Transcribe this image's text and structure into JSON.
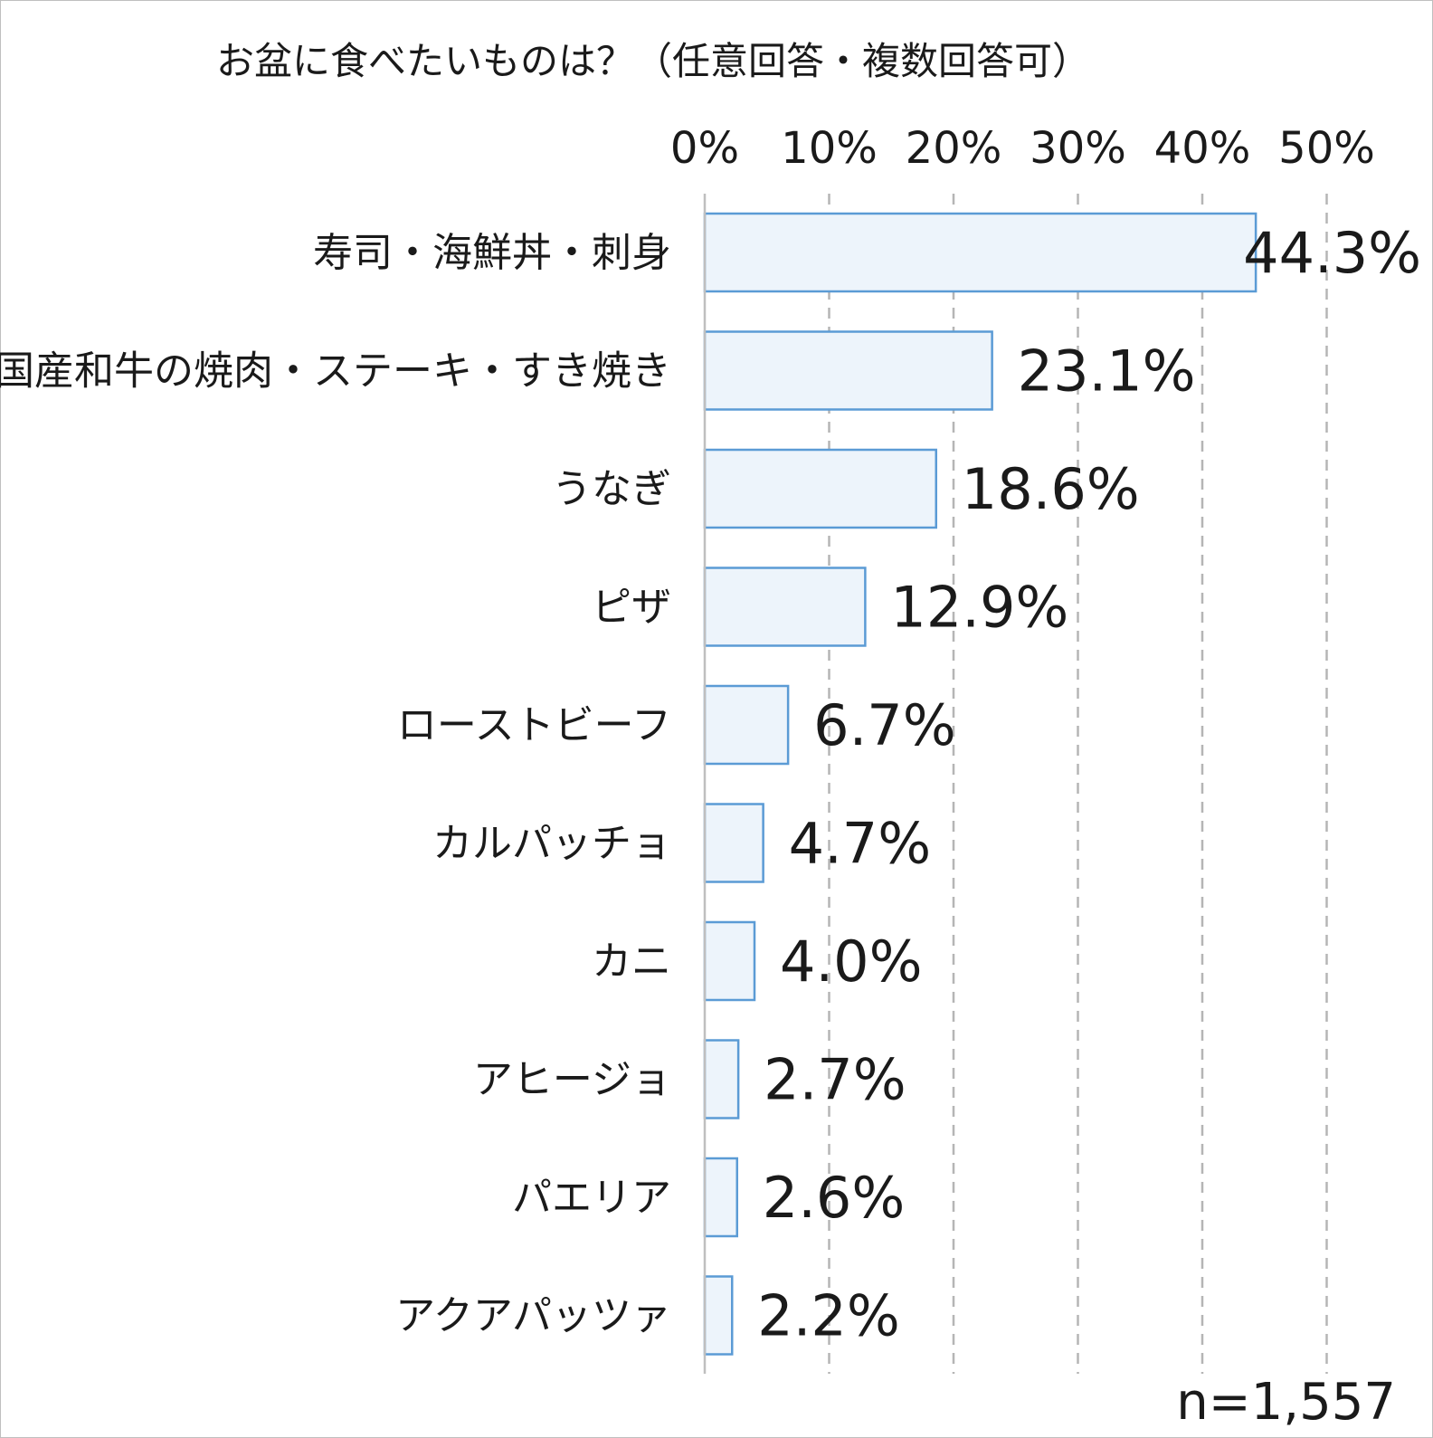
{
  "chart_data": {
    "type": "bar",
    "orientation": "horizontal",
    "title": "お盆に食べたいものは？（任意回答・複数回答可）",
    "categories": [
      "寿司・海鮮丼・刺身",
      "国産和牛の焼肉・ステーキ・すき焼き",
      "うなぎ",
      "ピザ",
      "ローストビーフ",
      "カルパッチョ",
      "カニ",
      "アヒージョ",
      "パエリア",
      "アクアパッツァ"
    ],
    "values": [
      44.3,
      23.1,
      18.6,
      12.9,
      6.7,
      4.7,
      4.0,
      2.7,
      2.6,
      2.2
    ],
    "value_labels": [
      "44.3%",
      "23.1%",
      "18.6%",
      "12.9%",
      "6.7%",
      "4.7%",
      "4.0%",
      "2.7%",
      "2.6%",
      "2.2%"
    ],
    "x_ticks": [
      0,
      10,
      20,
      30,
      40,
      50
    ],
    "x_tick_labels": [
      "0%",
      "10%",
      "20%",
      "30%",
      "40%",
      "50%"
    ],
    "xlim": [
      0,
      50
    ],
    "axis_position": "top",
    "grid": true,
    "grid_style": "dashed",
    "bar_fill": "#edf4fb",
    "bar_stroke": "#5b9bd5",
    "sample_size": "n=1,557"
  }
}
